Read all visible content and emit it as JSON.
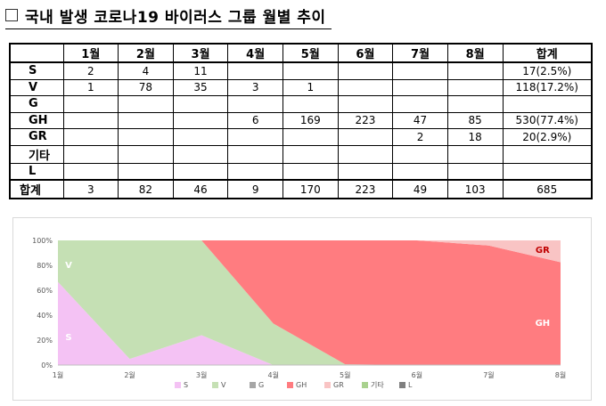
{
  "title": "국내 발생 코로나19 바이러스 그룹 월별 추이",
  "table": {
    "headers": [
      "",
      "1월",
      "2월",
      "3월",
      "4월",
      "5월",
      "6월",
      "7월",
      "8월",
      "합계"
    ],
    "rows": [
      {
        "label": "S",
        "cells": [
          "2",
          "4",
          "11",
          "",
          "",
          "",
          "",
          "",
          "17(2.5%)"
        ]
      },
      {
        "label": "V",
        "cells": [
          "1",
          "78",
          "35",
          "3",
          "1",
          "",
          "",
          "",
          "118(17.2%)"
        ]
      },
      {
        "label": "G",
        "cells": [
          "",
          "",
          "",
          "",
          "",
          "",
          "",
          "",
          ""
        ]
      },
      {
        "label": "GH",
        "cells": [
          "",
          "",
          "",
          "6",
          "169",
          "223",
          "47",
          "85",
          "530(77.4%)"
        ]
      },
      {
        "label": "GR",
        "cells": [
          "",
          "",
          "",
          "",
          "",
          "",
          "2",
          "18",
          "20(2.9%)"
        ]
      },
      {
        "label": "기타",
        "cells": [
          "",
          "",
          "",
          "",
          "",
          "",
          "",
          "",
          ""
        ]
      },
      {
        "label": "L",
        "cells": [
          "",
          "",
          "",
          "",
          "",
          "",
          "",
          "",
          ""
        ]
      },
      {
        "label": "합계",
        "cells": [
          "3",
          "82",
          "46",
          "9",
          "170",
          "223",
          "49",
          "103",
          "685"
        ]
      }
    ]
  },
  "chart_data": {
    "type": "area",
    "stacked": "percent",
    "categories": [
      "1월",
      "2월",
      "3월",
      "4월",
      "5월",
      "6월",
      "7월",
      "8월"
    ],
    "ylim": [
      0,
      100
    ],
    "yticks": [
      "0%",
      "20%",
      "40%",
      "60%",
      "80%",
      "100%"
    ],
    "series": [
      {
        "name": "S",
        "color": "#f4c2f4",
        "values": [
          2,
          4,
          11,
          0,
          0,
          0,
          0,
          0
        ]
      },
      {
        "name": "V",
        "color": "#c5e0b4",
        "values": [
          1,
          78,
          35,
          3,
          1,
          0,
          0,
          0
        ]
      },
      {
        "name": "G",
        "color": "#a6a6a6",
        "values": [
          0,
          0,
          0,
          0,
          0,
          0,
          0,
          0
        ]
      },
      {
        "name": "GH",
        "color": "#ff7c80",
        "values": [
          0,
          0,
          0,
          6,
          169,
          223,
          47,
          85
        ]
      },
      {
        "name": "GR",
        "color": "#f9c4c4",
        "values": [
          0,
          0,
          0,
          0,
          0,
          0,
          2,
          18
        ]
      },
      {
        "name": "기타",
        "color": "#a9d18e",
        "values": [
          0,
          0,
          0,
          0,
          0,
          0,
          0,
          0
        ]
      },
      {
        "name": "L",
        "color": "#7f7f7f",
        "values": [
          0,
          0,
          0,
          0,
          0,
          0,
          0,
          0
        ]
      }
    ],
    "area_labels": [
      {
        "series": "V",
        "text": "V"
      },
      {
        "series": "S",
        "text": "S"
      },
      {
        "series": "GR",
        "text": "GR"
      },
      {
        "series": "GH",
        "text": "GH"
      }
    ],
    "legend": [
      "S",
      "V",
      "G",
      "GH",
      "GR",
      "기타",
      "L"
    ],
    "legend_position": "bottom",
    "grid": false
  }
}
